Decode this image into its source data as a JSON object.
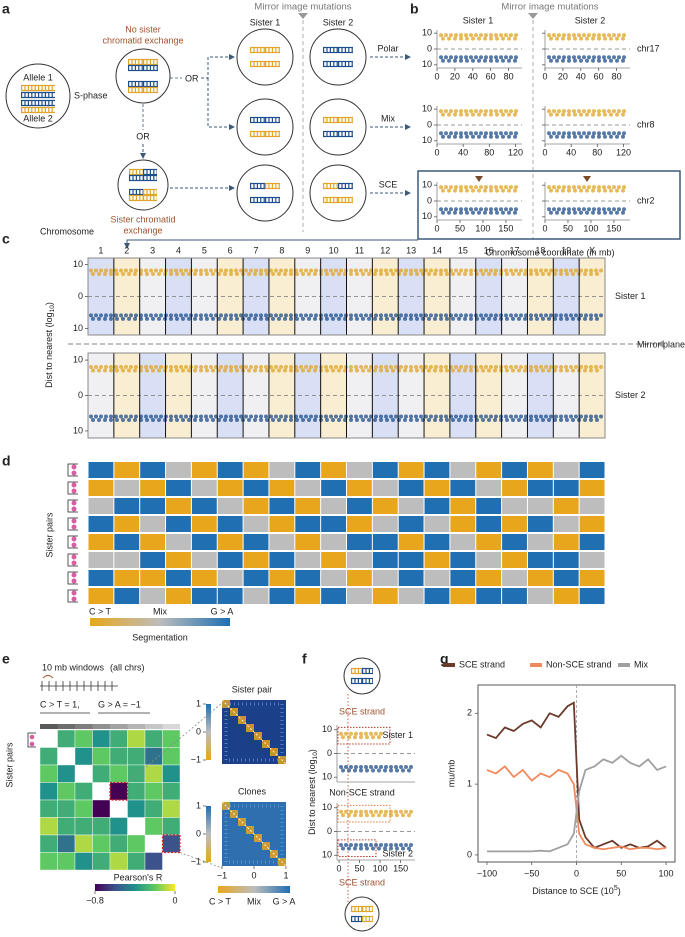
{
  "panel_labels": [
    "a",
    "b",
    "c",
    "d",
    "e",
    "f",
    "g"
  ],
  "a": {
    "title": "Mirror image mutations",
    "sisters": [
      "Sister 1",
      "Sister 2"
    ],
    "alleles": [
      "Allele 1",
      "Allele 2"
    ],
    "s_phase": "S-phase",
    "no_sce": [
      "No sister",
      "chromatid exchange"
    ],
    "or": "OR",
    "sce": [
      "Sister chromatid",
      "exchange"
    ],
    "outcomes": [
      "Polar",
      "Mix",
      "SCE"
    ]
  },
  "b": {
    "title": "Mirror image mutations",
    "sisters": [
      "Sister 1",
      "Sister 2"
    ],
    "ylim": [
      -12,
      12
    ],
    "yticks": [
      10,
      0,
      {
        "value": -10,
        "label": "10"
      }
    ],
    "panels": [
      {
        "name": "chr17",
        "xlim": [
          0,
          95
        ],
        "xticks": [
          0,
          20,
          40,
          60,
          80
        ]
      },
      {
        "name": "chr8",
        "xlim": [
          0,
          130
        ],
        "xticks": [
          0,
          40,
          80,
          120
        ]
      },
      {
        "name": "chr2",
        "xlim": [
          0,
          185
        ],
        "xticks": [
          0,
          50,
          100,
          150
        ]
      }
    ],
    "xlabel": "Chromosome coordinate (in mb)"
  },
  "c": {
    "chromosome_label": "Chromosome",
    "chromosomes": [
      "1",
      "2",
      "3",
      "4",
      "5",
      "6",
      "7",
      "8",
      "9",
      "10",
      "11",
      "12",
      "13",
      "14",
      "15",
      "16",
      "17",
      "18",
      "19",
      "X"
    ],
    "ylabel_parts": [
      "Dist to nearest (log",
      "10",
      ")"
    ],
    "sisters": [
      "Sister 1",
      "Sister 2"
    ],
    "mirror": "Mirror plane",
    "ylim": [
      -12,
      12
    ],
    "yticks": [
      10,
      0,
      {
        "value": -10,
        "label": "10"
      }
    ]
  },
  "d": {
    "ylabel": "Sister pairs",
    "legend": [
      "C > T",
      "Mix",
      "G > A"
    ],
    "colorbar_label": "Segmentation",
    "clim": [
      -1,
      1
    ],
    "matrix": [
      [
        1,
        -1,
        1,
        0,
        -1,
        1,
        -1,
        0,
        1,
        -1,
        0,
        1,
        -1,
        1,
        0,
        -1,
        1,
        -1,
        0,
        1
      ],
      [
        -1,
        0,
        -1,
        1,
        0,
        -1,
        1,
        -1,
        0,
        1,
        -1,
        0,
        1,
        -1,
        1,
        0,
        -1,
        1,
        1,
        -1
      ],
      [
        0,
        1,
        1,
        -1,
        1,
        0,
        -1,
        1,
        -1,
        0,
        1,
        -1,
        0,
        1,
        -1,
        1,
        0,
        0,
        -1,
        0
      ],
      [
        1,
        -1,
        0,
        1,
        -1,
        1,
        0,
        -1,
        1,
        1,
        -1,
        0,
        1,
        0,
        -1,
        1,
        -1,
        1,
        0,
        -1
      ],
      [
        -1,
        1,
        -1,
        0,
        1,
        -1,
        1,
        0,
        -1,
        0,
        1,
        1,
        -1,
        1,
        0,
        -1,
        1,
        0,
        -1,
        1
      ],
      [
        0,
        0,
        1,
        -1,
        0,
        1,
        -1,
        1,
        0,
        -1,
        0,
        1,
        1,
        -1,
        1,
        0,
        -1,
        1,
        1,
        0
      ],
      [
        1,
        -1,
        -1,
        1,
        -1,
        0,
        1,
        -1,
        1,
        0,
        -1,
        0,
        1,
        0,
        1,
        -1,
        0,
        -1,
        1,
        -1
      ],
      [
        -1,
        1,
        0,
        -1,
        1,
        1,
        0,
        1,
        -1,
        1,
        0,
        -1,
        0,
        1,
        -1,
        1,
        1,
        0,
        -1,
        1
      ]
    ]
  },
  "e": {
    "windows": "10 mb windows",
    "all": "(all chrs)",
    "ct": "C > T = 1,",
    "ga": "G > A = −1",
    "ylabel": "Sister pairs",
    "matrix": [
      [
        null,
        -0.3,
        -0.2,
        -0.4,
        -0.3,
        -0.1,
        -0.3,
        -0.2
      ],
      [
        -0.3,
        null,
        -0.4,
        -0.2,
        -0.3,
        -0.3,
        -0.5,
        -0.2
      ],
      [
        -0.2,
        -0.4,
        null,
        -0.3,
        -0.2,
        -0.3,
        -0.1,
        -0.4
      ],
      [
        -0.4,
        -0.2,
        -0.3,
        null,
        -0.8,
        -0.3,
        -0.2,
        -0.3
      ],
      [
        -0.3,
        -0.3,
        -0.2,
        -0.8,
        null,
        -0.4,
        -0.3,
        -0.1
      ],
      [
        -0.1,
        -0.3,
        -0.3,
        -0.3,
        -0.4,
        null,
        -0.2,
        -0.3
      ],
      [
        -0.3,
        -0.5,
        -0.1,
        -0.2,
        -0.3,
        -0.2,
        null,
        -0.6
      ],
      [
        -0.2,
        -0.2,
        -0.4,
        -0.3,
        -0.1,
        -0.3,
        -0.6,
        null
      ]
    ],
    "clim": [
      -0.8,
      0
    ],
    "cticks": [
      {
        "value": -0.8,
        "label": "−0.8"
      },
      0
    ],
    "clabel": "Pearson's R",
    "insets": [
      "Sister pair",
      "Clones"
    ],
    "inset_clim": [
      -1,
      1
    ],
    "inset_cticks": [
      1,
      0,
      {
        "value": -1,
        "label": "−1"
      }
    ],
    "inset_xticks": [
      {
        "value": -1,
        "label": "−1"
      },
      0,
      1
    ],
    "inset_legend": [
      "C > T",
      "Mix",
      "G > A"
    ]
  },
  "f": {
    "top": "SCE strand",
    "ylabel_parts": [
      "Dist to nearest (log",
      "10",
      ")"
    ],
    "sister1": "Sister 1",
    "middle": "Non-SCE strand",
    "sister2": "Sister 2",
    "bottom": "SCE strand",
    "ylim": [
      -12,
      12
    ],
    "yticks": [
      10,
      0,
      {
        "value": -10,
        "label": "10"
      }
    ],
    "xlim": [
      -5,
      185
    ],
    "xticks": [
      0,
      50,
      100,
      150
    ]
  },
  "g": {
    "type": "line",
    "x": [
      -100,
      -90,
      -80,
      -70,
      -60,
      -50,
      -40,
      -30,
      -20,
      -10,
      -3,
      3,
      10,
      20,
      30,
      40,
      50,
      60,
      70,
      80,
      90,
      100
    ],
    "series": [
      {
        "name": "SCE strand",
        "color": "#6b3a2a",
        "values": [
          1.7,
          1.65,
          1.8,
          1.75,
          1.85,
          1.9,
          1.8,
          2.0,
          1.95,
          2.1,
          2.15,
          0.5,
          0.25,
          0.1,
          0.15,
          0.2,
          0.1,
          0.15,
          0.1,
          0.12,
          0.2,
          0.1
        ]
      },
      {
        "name": "Non-SCE strand",
        "color": "#f08a5d",
        "values": [
          1.2,
          1.15,
          1.25,
          1.1,
          1.2,
          1.05,
          1.15,
          1.1,
          1.2,
          1.15,
          1.0,
          0.3,
          0.15,
          0.1,
          0.08,
          0.1,
          0.12,
          0.08,
          0.1,
          0.1,
          0.08,
          0.1
        ]
      },
      {
        "name": "Mix",
        "color": "#a0a0a0",
        "values": [
          0.05,
          0.05,
          0.05,
          0.05,
          0.05,
          0.05,
          0.06,
          0.05,
          0.1,
          0.15,
          0.3,
          0.9,
          1.2,
          1.25,
          1.35,
          1.3,
          1.4,
          1.3,
          1.25,
          1.35,
          1.2,
          1.25
        ]
      }
    ],
    "xlim": [
      -110,
      110
    ],
    "xticks": [
      {
        "value": -100,
        "label": "−100"
      },
      {
        "value": -50,
        "label": "−50"
      },
      0,
      50,
      100
    ],
    "ylim": [
      -0.1,
      2.4
    ],
    "yticks": [
      0,
      1,
      2
    ],
    "ylabel": "mu/mb",
    "xlabel_parts": [
      "Distance to SCE (10",
      "5",
      ")"
    ]
  }
}
